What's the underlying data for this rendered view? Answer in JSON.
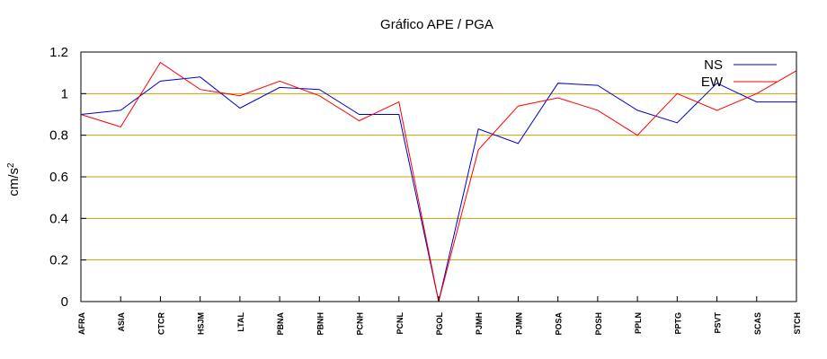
{
  "chart_data": {
    "type": "line",
    "title": "Gráfico  APE / PGA",
    "xlabel": "",
    "ylabel": "cm/s",
    "ylabel_superscript": "2",
    "ylim": [
      0,
      1.2
    ],
    "yticks": [
      "0",
      "0.2",
      "0.4",
      "0.6",
      "0.8",
      "1",
      "1.2"
    ],
    "grid": "horizontal",
    "legend_position": "top-right",
    "categories": [
      "AFRA",
      "ASIA",
      "CTCR",
      "HSJM",
      "LTAL",
      "PBNA",
      "PBNH",
      "PCNH",
      "PCNL",
      "PGOL",
      "PJMH",
      "PJMN",
      "POSA",
      "POSH",
      "PPLN",
      "PPTG",
      "PSVT",
      "SCAS",
      "STCH"
    ],
    "series": [
      {
        "name": "NS",
        "color": "#0000cc",
        "values": [
          0.9,
          0.92,
          1.06,
          1.08,
          0.93,
          1.03,
          1.02,
          0.9,
          0.9,
          0.0,
          0.83,
          0.76,
          1.05,
          1.04,
          0.92,
          0.86,
          1.05,
          0.96,
          0.96
        ]
      },
      {
        "name": "EW",
        "color": "#ff0000",
        "values": [
          0.9,
          0.84,
          1.15,
          1.02,
          0.99,
          1.06,
          0.99,
          0.87,
          0.96,
          0.0,
          0.73,
          0.94,
          0.98,
          0.92,
          0.8,
          1.0,
          0.92,
          1.0,
          1.11
        ]
      }
    ],
    "grid_color": "#c8a000",
    "axis_color": "#000000"
  }
}
